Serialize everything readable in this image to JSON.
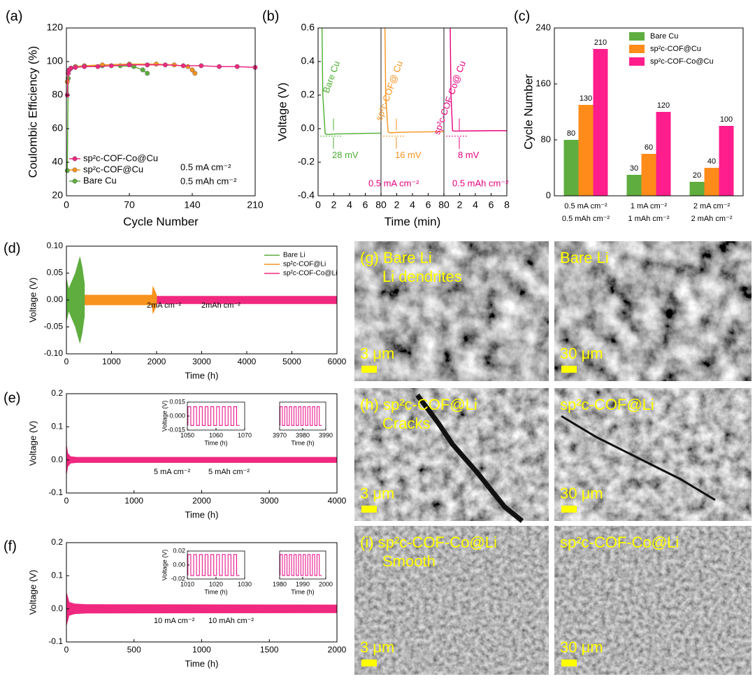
{
  "chart_data": [
    {
      "type": "line",
      "label": "(a)",
      "xlabel": "Cycle Number",
      "ylabel": "Coulombic Efficiency (%)",
      "xlim": [
        0,
        210
      ],
      "xticks": [
        0,
        70,
        140,
        210
      ],
      "ylim": [
        20,
        120
      ],
      "yticks": [
        20,
        40,
        60,
        80,
        100,
        120
      ],
      "legend": "lower left",
      "annotations": [
        "0.5 mA cm⁻²",
        "0.5 mAh cm⁻²"
      ],
      "series": [
        {
          "name": "sp²c-COF-Co@Cu",
          "color": "#f0287f",
          "x": [
            1,
            2,
            3,
            5,
            10,
            20,
            35,
            50,
            70,
            90,
            110,
            130,
            150,
            170,
            190,
            210
          ],
          "values": [
            80,
            93,
            95,
            96,
            96.5,
            97,
            97,
            97.5,
            98,
            98,
            98,
            97.5,
            97.5,
            97,
            97,
            96.5
          ]
        },
        {
          "name": "sp²c-COF@Cu",
          "color": "#f7931e",
          "x": [
            1,
            3,
            5,
            10,
            20,
            40,
            70,
            100,
            120,
            135,
            140,
            143
          ],
          "values": [
            88,
            95,
            96,
            97,
            97.5,
            98,
            98.5,
            98.5,
            98,
            97,
            95,
            93
          ]
        },
        {
          "name": "Bare Cu",
          "color": "#5ead3e",
          "x": [
            1,
            2,
            3,
            5,
            10,
            20,
            40,
            60,
            75,
            85,
            90
          ],
          "values": [
            35,
            90,
            95,
            96,
            97,
            97,
            97.5,
            97.5,
            97,
            95,
            93
          ]
        }
      ]
    },
    {
      "type": "segments",
      "label": "(b)",
      "xlabel": "Time (min)",
      "ylabel": "Voltage (V)",
      "xlim": [
        0,
        8
      ],
      "xticks": [
        0,
        2,
        4,
        6,
        8
      ],
      "ylim": [
        -0.4,
        0.6
      ],
      "yticks": [
        -0.4,
        -0.2,
        {
          "value": 0,
          "label": "0.0"
        },
        0.2,
        0.4,
        0.6
      ],
      "annotations": [
        "0.5 mA cm⁻²",
        "0.5 mAh cm⁻²"
      ],
      "series": [
        {
          "name": "Bare Cu",
          "annotation": "28 mV",
          "color": "#4caf32",
          "x": [
            0.5,
            0.6,
            0.9,
            1.2,
            2,
            4,
            6,
            8
          ],
          "values": [
            0.6,
            0.2,
            -0.03,
            -0.035,
            -0.032,
            -0.03,
            -0.028,
            -0.027
          ]
        },
        {
          "name": "sp²c-COF@ Cu",
          "annotation": "16 mV",
          "color": "#f7931e",
          "x": [
            0.5,
            0.6,
            0.9,
            1.2,
            2,
            4,
            6,
            8
          ],
          "values": [
            0.6,
            0.2,
            -0.02,
            -0.025,
            -0.022,
            -0.02,
            -0.019,
            -0.018
          ]
        },
        {
          "name": "sp²c-COF-Co@ Cu",
          "annotation": "8 mV",
          "color": "#e6007e",
          "x": [
            0.8,
            0.9,
            1.1,
            1.4,
            2,
            4,
            6,
            8
          ],
          "values": [
            0.6,
            0.2,
            -0.012,
            -0.015,
            -0.014,
            -0.013,
            -0.012,
            -0.012
          ]
        }
      ]
    },
    {
      "type": "bar",
      "label": "(c)",
      "ylabel": "Cycle Number",
      "ylim": [
        0,
        240
      ],
      "yticks": [
        0,
        80,
        160,
        240
      ],
      "legend": "upper left",
      "categories": [
        [
          "0.5 mA cm⁻²",
          "0.5 mAh cm⁻²"
        ],
        [
          "1 mA cm⁻²",
          "1 mAh cm⁻²"
        ],
        [
          "2 mA cm⁻²",
          "2 mAh cm⁻²"
        ]
      ],
      "series": [
        {
          "name": "Bare Cu",
          "color": "#5ead3e",
          "values": [
            80,
            30,
            20
          ]
        },
        {
          "name": "sp²c-COF@Cu",
          "color": "#ff8c1a",
          "values": [
            130,
            60,
            40
          ]
        },
        {
          "name": "sp²c-COF-Co@Cu",
          "color": "#ff1e8c",
          "values": [
            210,
            120,
            100
          ]
        }
      ]
    },
    {
      "type": "band",
      "label": "(d)",
      "xlabel": "Time (h)",
      "ylabel": "Voltage (V)",
      "legend": "upper right",
      "xlim": [
        0,
        6000
      ],
      "xticks": [
        0,
        1000,
        2000,
        3000,
        4000,
        5000,
        6000
      ],
      "ylim": [
        -0.1,
        0.1
      ],
      "yticks": [
        {
          "value": -0.1,
          "label": "-0.10"
        },
        {
          "value": -0.05,
          "label": "-0.05"
        },
        {
          "value": 0,
          "label": "0.00"
        },
        {
          "value": 0.05,
          "label": "0.05"
        },
        {
          "value": 0.1,
          "label": "0.10"
        }
      ],
      "annotations": [
        "2mA cm⁻²",
        "2mAh cm⁻²"
      ],
      "series": [
        {
          "name": "Bare Li",
          "color": "#5ead3e",
          "x": [
            0,
            50,
            100,
            200,
            300,
            350,
            400
          ],
          "values": [
            0.04,
            0.02,
            0.03,
            0.05,
            0.08,
            0.06,
            0.03
          ]
        },
        {
          "name": "sp²c-COF@Li",
          "color": "#f7931e",
          "x": [
            0,
            400,
            1000,
            1900,
            1920,
            2000
          ],
          "values": [
            0.01,
            0.009,
            0.009,
            0.009,
            0.025,
            0.009
          ]
        },
        {
          "name": "sp²c-COF-Co@Li",
          "color": "#f0287f",
          "x": [
            0,
            2000,
            6000
          ],
          "values": [
            0.008,
            0.007,
            0.007
          ]
        }
      ]
    },
    {
      "type": "band",
      "label": "(e)",
      "xlabel": "Time (h)",
      "ylabel": "Voltage (V)",
      "xlim": [
        0,
        4000
      ],
      "xticks": [
        0,
        1000,
        2000,
        3000,
        4000
      ],
      "ylim": [
        -0.1,
        0.2
      ],
      "yticks": [
        -0.1,
        {
          "value": 0,
          "label": "0.0"
        },
        0.1,
        0.2
      ],
      "annotations": [
        "5 mA cm⁻²",
        "5 mAh cm⁻²"
      ],
      "series": [
        {
          "name": "sp²c-COF-Co@Li",
          "color": "#f0287f",
          "x": [
            0,
            20,
            60,
            150,
            4000
          ],
          "values": [
            0.045,
            0.02,
            0.01,
            0.008,
            0.008
          ]
        }
      ],
      "insets": [
        {
          "xlabel": "Time (h)",
          "ylabel": "Voltage (V)",
          "xlim": [
            1050,
            1070
          ],
          "xticks": [
            1050,
            1060,
            1070
          ],
          "ylim": [
            -0.015,
            0.015
          ],
          "yticks": [
            -0.015,
            {
              "value": 0,
              "label": "0.000"
            },
            0.015
          ],
          "amplitude": 0.01,
          "period": 2
        },
        {
          "xlabel": "Time (h)",
          "xlim": [
            3970,
            3990
          ],
          "xticks": [
            3970,
            3980,
            3990
          ],
          "ylim": [
            -0.015,
            0.015
          ],
          "amplitude": 0.01,
          "period": 2
        }
      ]
    },
    {
      "type": "band",
      "label": "(f)",
      "xlabel": "Time (h)",
      "ylabel": "Voltage (V)",
      "xlim": [
        0,
        2000
      ],
      "xticks": [
        0,
        500,
        1000,
        1500,
        2000
      ],
      "ylim": [
        -0.1,
        0.2
      ],
      "yticks": [
        -0.1,
        {
          "value": 0,
          "label": "0.0"
        },
        0.1,
        0.2
      ],
      "annotations": [
        "10 mA cm⁻²",
        "10 mAh cm⁻²"
      ],
      "series": [
        {
          "name": "sp²c-COF-Co@Li",
          "color": "#f0287f",
          "x": [
            0,
            20,
            60,
            150,
            2000
          ],
          "values": [
            0.05,
            0.02,
            0.015,
            0.013,
            0.012
          ]
        }
      ],
      "insets": [
        {
          "xlabel": "Time (h)",
          "ylabel": "Voltage (V)",
          "xlim": [
            1010,
            1030
          ],
          "xticks": [
            1010,
            1020,
            1030
          ],
          "ylim": [
            -0.02,
            0.02
          ],
          "yticks": [
            -0.02,
            {
              "value": 0,
              "label": "0.00"
            },
            0.02
          ],
          "amplitude": 0.015,
          "period": 2
        },
        {
          "xlabel": "Time (h)",
          "xlim": [
            1980,
            2000
          ],
          "xticks": [
            1980,
            1990,
            2000
          ],
          "ylim": [
            -0.02,
            0.02
          ],
          "amplitude": 0.015,
          "period": 2
        }
      ]
    }
  ],
  "images": [
    {
      "label": "(g) Bare Li",
      "caption": "Li dendrites",
      "scale": "3 μm"
    },
    {
      "label": "Bare Li",
      "scale": "30 μm"
    },
    {
      "label": "(h) sp²c-COF@Li",
      "caption": "Cracks",
      "scale": "3 μm"
    },
    {
      "label": "sp²c-COF@Li",
      "scale": "30 μm"
    },
    {
      "label": "(i) sp²c-COF-Co@Li",
      "caption": "Smooth",
      "scale": "3 μm"
    },
    {
      "label": "sp²c-COF-Co@Li",
      "scale": "30 μm"
    }
  ]
}
